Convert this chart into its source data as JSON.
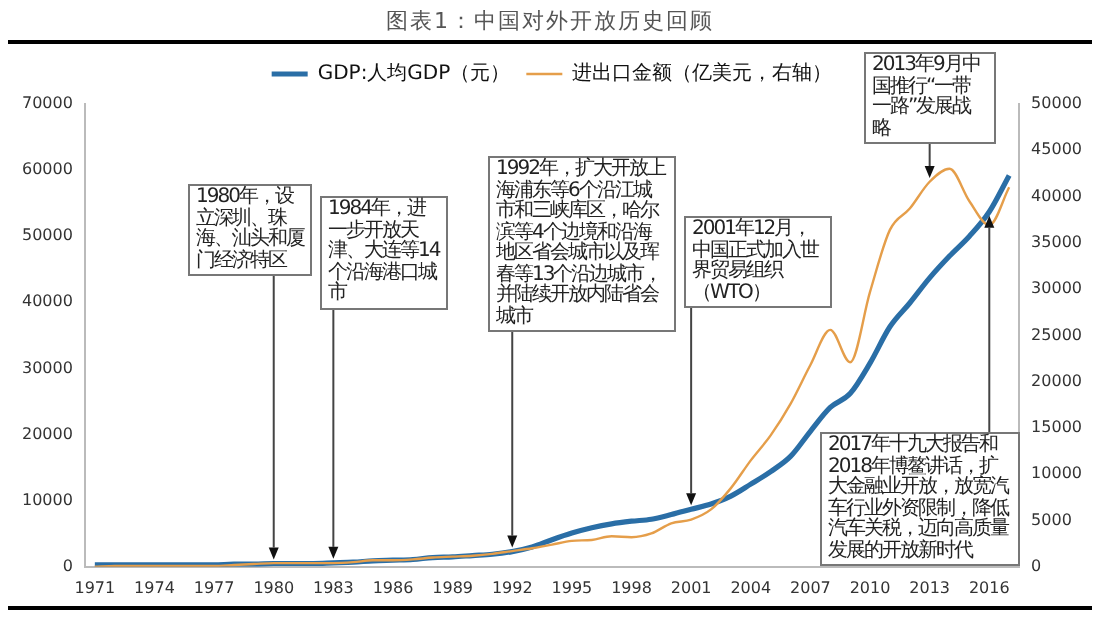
{
  "chart_data": {
    "type": "line",
    "title": "图表1：中国对外开放历史回顾",
    "categories": [
      "1971",
      null,
      null,
      "1974",
      null,
      null,
      "1977",
      null,
      null,
      "1980",
      null,
      null,
      "1983",
      null,
      null,
      "1986",
      null,
      null,
      "1989",
      null,
      null,
      "1992",
      null,
      null,
      "1995",
      null,
      null,
      "1998",
      null,
      null,
      "2001",
      null,
      null,
      "2004",
      null,
      null,
      "2007",
      null,
      null,
      "2010",
      null,
      null,
      "2013",
      null,
      null,
      "2016",
      null
    ],
    "series": [
      {
        "name": "GDP:人均GDP（元）",
        "color": "#2a6ea6",
        "values": [
          300,
          300,
          300,
          300,
          300,
          300,
          300,
          400,
          400,
          500,
          500,
          500,
          600,
          700,
          900,
          1000,
          1100,
          1400,
          1500,
          1700,
          1900,
          2300,
          3000,
          4100,
          5100,
          5900,
          6500,
          6900,
          7200,
          7900,
          8700,
          9500,
          10700,
          12500,
          14400,
          16700,
          20500,
          24100,
          26200,
          30800,
          36300,
          39900,
          43700,
          47000,
          50000,
          53700,
          59200
        ]
      },
      {
        "name": "进出口金额（亿美元，右轴）",
        "color": "#e59e4a",
        "axis": "y2",
        "values": [
          0,
          100,
          100,
          100,
          100,
          100,
          100,
          200,
          300,
          400,
          400,
          400,
          400,
          500,
          700,
          700,
          800,
          1000,
          1100,
          1200,
          1400,
          1700,
          2000,
          2400,
          2800,
          2900,
          3300,
          3200,
          3600,
          4700,
          5100,
          6200,
          8500,
          11500,
          14200,
          17600,
          21800,
          25600,
          22100,
          29700,
          36400,
          38700,
          41600,
          43000,
          39500,
          36900,
          41000
        ]
      }
    ],
    "ylim": [
      0,
      70000
    ],
    "yticks": [
      0,
      10000,
      20000,
      30000,
      40000,
      50000,
      60000,
      70000
    ],
    "y2lim": [
      0,
      50000
    ],
    "y2ticks": [
      0,
      5000,
      10000,
      15000,
      20000,
      25000,
      30000,
      35000,
      40000,
      45000,
      50000
    ],
    "legend": "top",
    "annotations": [
      {
        "text": "1980年，设立深圳、珠海、汕头和厦门经济特区",
        "x": "1980",
        "y": 500
      },
      {
        "text": "1984年，进一步开放天津、大连等14个沿海港口城市",
        "x": "1983",
        "y": 600
      },
      {
        "text": "1992年，扩大开放上海浦东等6个沿江城市和三峡库区，哈尔滨等4个边境和沿海地区省会城市以及珲春等13个沿边城市，并陆续开放内陆省会城市",
        "x": "1992",
        "y": 2300
      },
      {
        "text": "2001年12月，中国正式加入世界贸易组织（WTO）",
        "x": "2001",
        "y": 8700
      },
      {
        "text": "2013年9月中国推行“一带一路”发展战略",
        "x": "2013",
        "y": 58200
      },
      {
        "text": "2017年十九大报告和2018年博鳌讲话，扩大金融业开放，放宽汽车行业外资限制，降低汽车关税，迈向高质量发展的开放新时代",
        "x": "2016",
        "y": 53700
      }
    ]
  }
}
